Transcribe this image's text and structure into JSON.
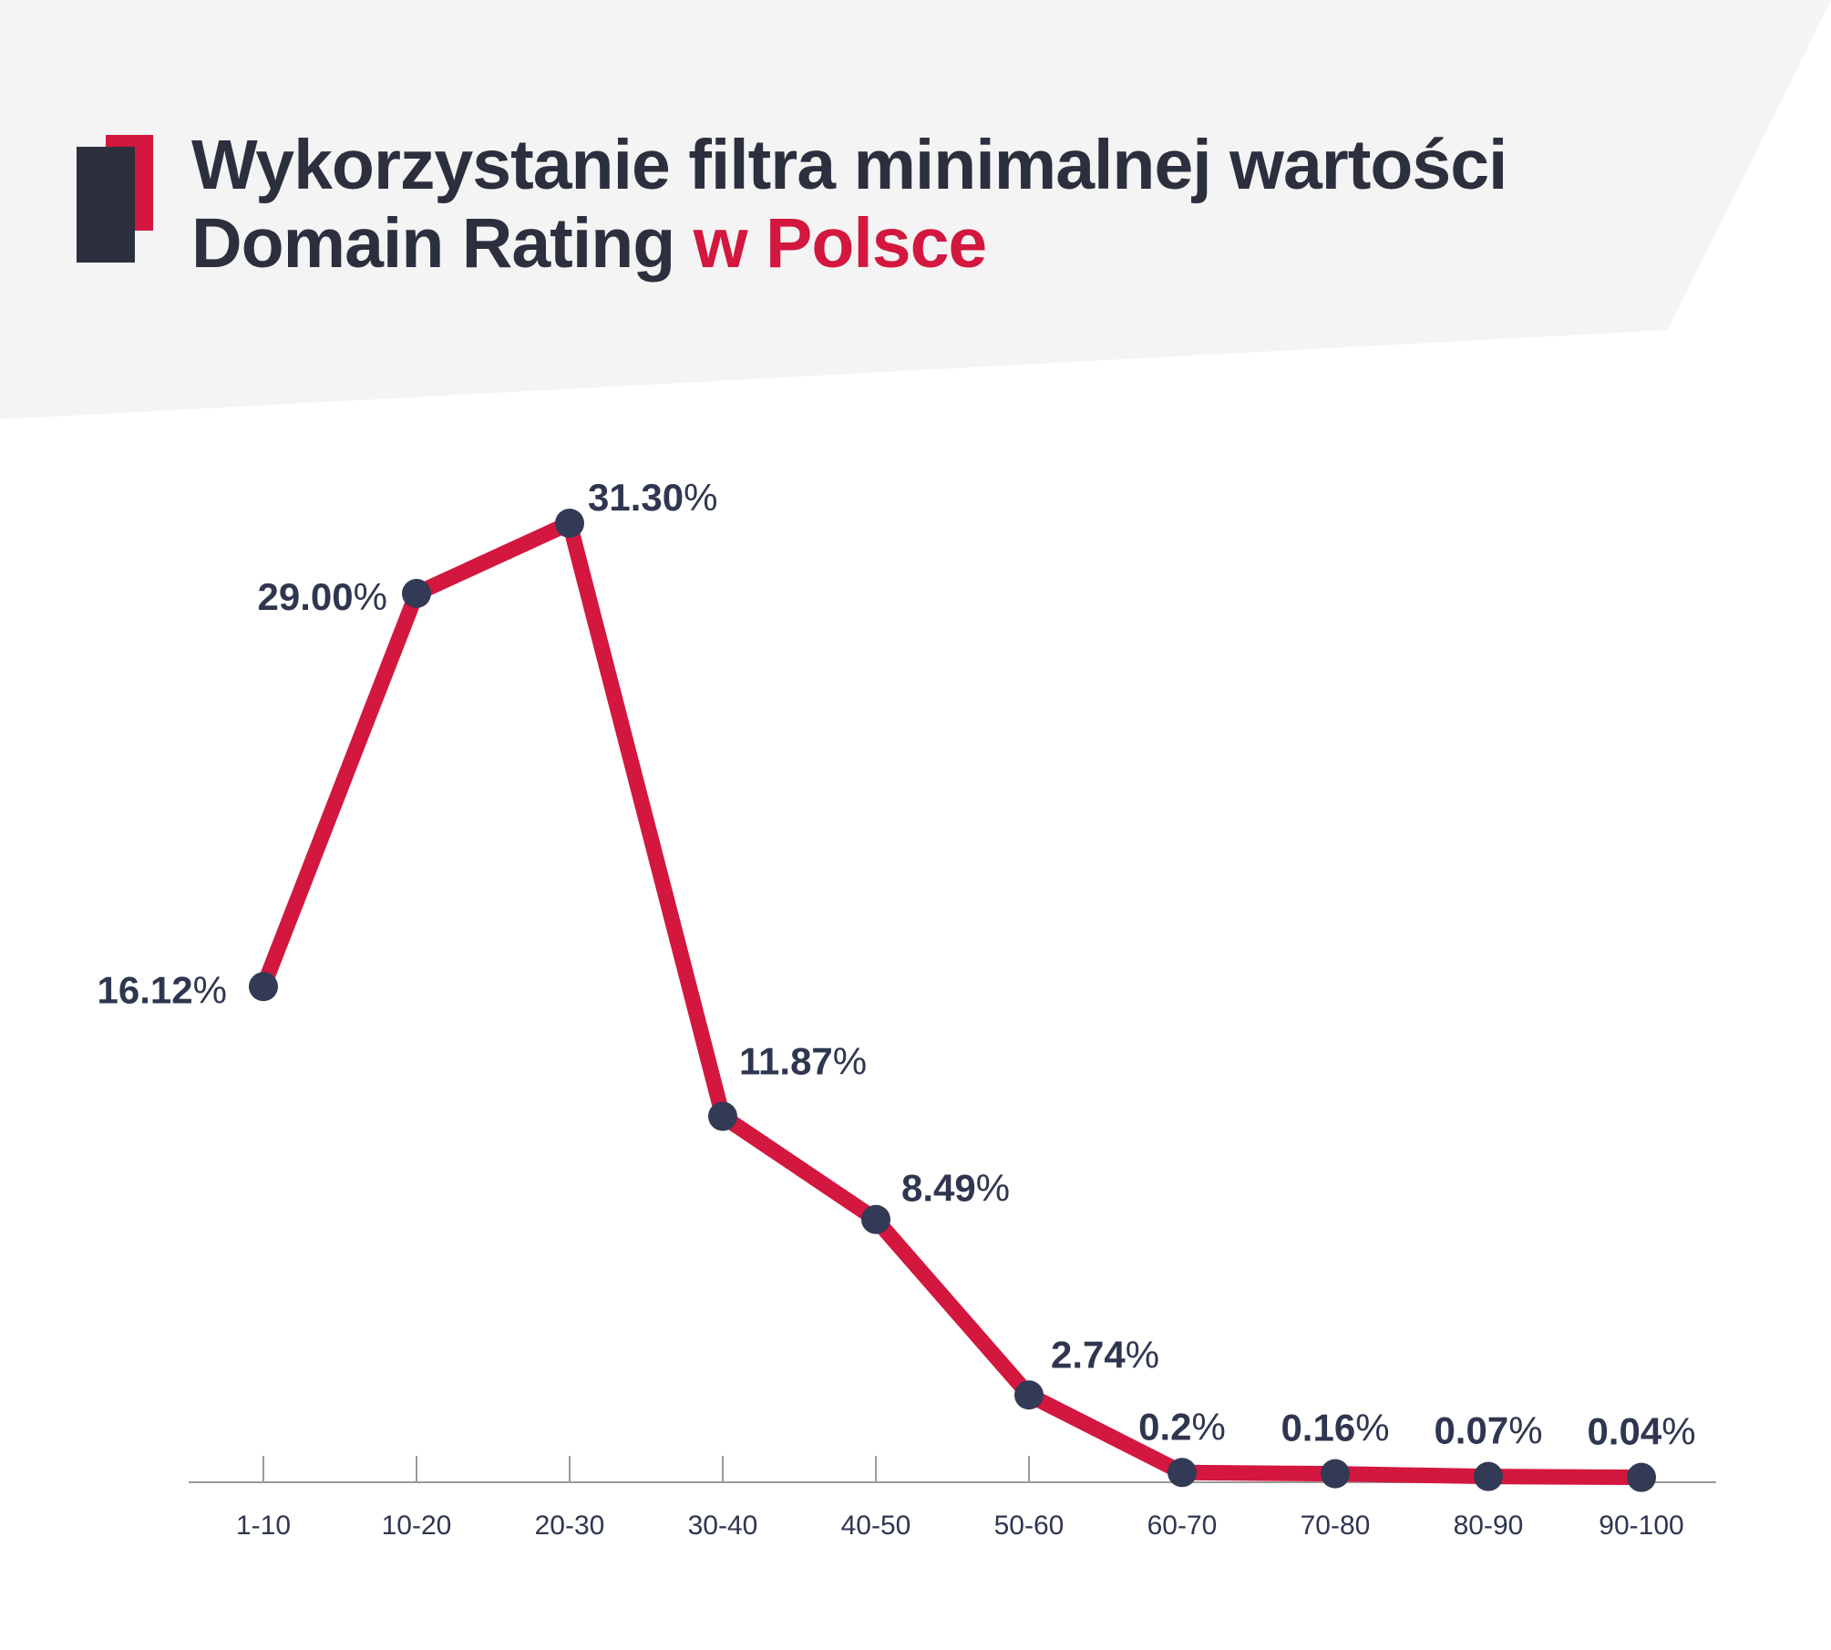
{
  "title": {
    "line1": "Wykorzystanie filtra minimalnej wartości",
    "line2_main": "Domain Rating ",
    "line2_accent": "w Polsce"
  },
  "colors": {
    "line": "#d3173f",
    "marker": "#323a55",
    "label": "#2f3650",
    "header_bg": "#f4f4f4",
    "title": "#2c2f3e",
    "accent": "#d3173f",
    "axis": "#9a9a9a"
  },
  "chart_data": {
    "type": "line",
    "title": "Wykorzystanie filtra minimalnej wartości Domain Rating w Polsce",
    "xlabel": "",
    "ylabel": "",
    "categories": [
      "1-10",
      "10-20",
      "20-30",
      "30-40",
      "40-50",
      "50-60",
      "60-70",
      "70-80",
      "80-90",
      "90-100"
    ],
    "values": [
      16.12,
      29.0,
      31.3,
      11.87,
      8.49,
      2.74,
      0.2,
      0.16,
      0.07,
      0.04
    ],
    "value_labels": [
      "16.12",
      "29.00",
      "31.30",
      "11.87",
      "8.49",
      "2.74",
      "0.2",
      "0.16",
      "0.07",
      "0.04"
    ],
    "value_suffix": "%",
    "ylim": [
      0,
      31.3
    ],
    "grid": false,
    "legend": "none"
  }
}
